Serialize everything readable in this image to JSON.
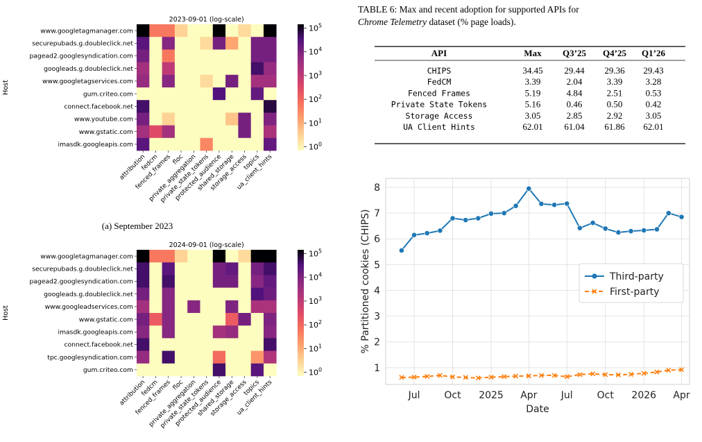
{
  "heatmap_common": {
    "hosts_label": "Host",
    "apis": [
      "attribution",
      "fedcm",
      "fenced_frames",
      "floc",
      "private_aggregation",
      "private_state_tokens",
      "protected_audience",
      "shared_storage",
      "storage_access",
      "topics",
      "ua_client_hints"
    ],
    "colorbar_ticks": [
      {
        "exp": "5"
      },
      {
        "exp": "4"
      },
      {
        "exp": "3"
      },
      {
        "exp": "2"
      },
      {
        "exp": "1"
      },
      {
        "exp": "0"
      }
    ],
    "colorbar_base": "10"
  },
  "chart_data": [
    {
      "type": "heatmap",
      "title": "2023-09-01 (log-scale)",
      "caption": "(a) September 2023",
      "ylabel": "Host",
      "hosts": [
        "www.googletagmanager.com",
        "securepubads.g.doubleclick.net",
        "pagead2.googlesyndication.com",
        "googleads.g.doubleclick.net",
        "www.googletagservices.com",
        "gum.criteo.com",
        "connect.facebook.net",
        "www.youtube.com",
        "www.gstatic.com",
        "imasdk.googleapis.com"
      ],
      "x": [
        "attribution",
        "fedcm",
        "fenced_frames",
        "floc",
        "private_aggregation",
        "private_state_tokens",
        "protected_audience",
        "shared_storage",
        "storage_access",
        "topics",
        "ua_client_hints"
      ],
      "log10_values": [
        [
          5,
          1.8,
          1.8,
          0.6,
          0,
          0,
          5,
          0,
          0.5,
          0,
          5
        ],
        [
          4.3,
          0,
          3.8,
          0,
          0,
          0.5,
          4,
          1.2,
          0,
          4,
          4
        ],
        [
          4,
          0,
          1.8,
          0,
          0,
          0,
          0,
          0,
          0,
          4,
          4
        ],
        [
          3.4,
          0,
          3,
          0,
          0,
          0,
          0,
          0,
          0,
          4.5,
          3.6
        ],
        [
          3.6,
          0,
          3.8,
          0,
          0,
          0.5,
          0,
          4,
          0,
          3.4,
          3.4
        ],
        [
          0,
          0,
          0,
          0,
          0,
          0,
          4.4,
          0,
          0,
          4.2,
          0
        ],
        [
          4.5,
          0,
          0,
          0,
          0,
          0,
          0,
          0,
          0,
          0,
          4.7
        ],
        [
          4,
          0,
          0.6,
          0,
          0,
          0,
          0,
          0.8,
          4,
          0,
          3.9
        ],
        [
          3.4,
          2.5,
          3.4,
          0,
          0,
          0,
          0,
          0,
          4,
          0,
          3.3
        ],
        [
          4.3,
          0,
          0,
          0,
          0,
          1.6,
          0,
          0,
          0,
          0,
          4.2
        ]
      ],
      "colorbar": {
        "scale": "log",
        "range": [
          1,
          100000
        ]
      }
    },
    {
      "type": "heatmap",
      "title": "2024-09-01 (log-scale)",
      "caption": "",
      "ylabel": "Host",
      "hosts": [
        "www.googletagmanager.com",
        "securepubads.g.doubleclick.net",
        "pagead2.googlesyndication.com",
        "googleads.g.doubleclick.net",
        "www.googleadservices.com",
        "www.gstatic.com",
        "imasdk.googleapis.com",
        "connect.facebook.net",
        "tpc.googlesyndication.com",
        "gum.criteo.com"
      ],
      "x": [
        "attribution",
        "fedcm",
        "fenced_frames",
        "floc",
        "private_aggregation",
        "private_state_tokens",
        "protected_audience",
        "shared_storage",
        "storage_access",
        "topics",
        "ua_client_hints"
      ],
      "log10_values": [
        [
          5,
          1.8,
          1.8,
          0.6,
          0,
          0,
          5,
          0,
          0.5,
          5,
          5
        ],
        [
          4.5,
          0,
          4.3,
          0,
          0,
          0,
          4,
          4.2,
          0,
          4,
          4.5
        ],
        [
          4.5,
          0,
          4.5,
          0,
          0,
          0,
          4,
          4,
          0,
          3.8,
          4.2
        ],
        [
          4,
          0,
          3.8,
          0,
          0,
          0,
          0,
          0,
          0,
          4.4,
          4.1
        ],
        [
          3.4,
          0,
          3.8,
          0,
          3.8,
          0,
          0,
          3.9,
          0,
          3.3,
          3.3
        ],
        [
          4,
          2.2,
          3.8,
          0,
          0,
          0,
          0,
          2.2,
          4,
          0,
          3.9
        ],
        [
          3.8,
          0,
          3.8,
          0,
          0,
          0,
          3.4,
          3.6,
          0,
          0,
          3.8
        ],
        [
          4.5,
          0,
          0,
          0,
          0,
          0,
          0,
          0,
          0,
          0,
          4.5
        ],
        [
          3.6,
          0,
          4.5,
          0,
          0,
          0,
          2,
          0,
          0,
          1.4,
          3.2
        ],
        [
          0,
          0,
          0,
          0,
          0,
          0,
          4.5,
          0,
          0,
          4.3,
          0
        ]
      ],
      "colorbar": {
        "scale": "log",
        "range": [
          1,
          100000
        ]
      }
    },
    {
      "type": "table",
      "title_lead": "TABLE 6: Max and recent adoption for supported APIs for",
      "title_em": "Chrome Telemetry",
      "title_tail": "dataset (% page loads).",
      "columns": [
        "API",
        "Max",
        "Q3’25",
        "Q4’25",
        "Q1’26"
      ],
      "rows": [
        [
          "CHIPS",
          "34.45",
          "29.44",
          "29.36",
          "29.43"
        ],
        [
          "FedCM",
          "3.39",
          "2.04",
          "3.39",
          "3.28"
        ],
        [
          "Fenced Frames",
          "5.19",
          "4.84",
          "2.51",
          "0.53"
        ],
        [
          "Private State Tokens",
          "5.16",
          "0.46",
          "0.50",
          "0.42"
        ],
        [
          "Storage Access",
          "3.05",
          "2.85",
          "2.92",
          "3.05"
        ],
        [
          "UA Client Hints",
          "62.01",
          "61.04",
          "61.86",
          "62.01"
        ]
      ]
    },
    {
      "type": "line",
      "xlabel": "Date",
      "ylabel": "% Partitioned cookies (CHIPS)",
      "ylim": [
        0.35,
        8.35
      ],
      "yticks": [
        "1",
        "2",
        "3",
        "4",
        "5",
        "6",
        "7",
        "8"
      ],
      "xlim": [
        "2024-04-24",
        "2026-04-20"
      ],
      "xticks": [
        {
          "date": "2024-07-01",
          "label": "Jul"
        },
        {
          "date": "2024-10-01",
          "label": "Oct"
        },
        {
          "date": "2025-01-01",
          "label": "2025"
        },
        {
          "date": "2025-04-01",
          "label": "Apr"
        },
        {
          "date": "2025-07-01",
          "label": "Jul"
        },
        {
          "date": "2025-10-01",
          "label": "Oct"
        },
        {
          "date": "2026-01-01",
          "label": "2026"
        },
        {
          "date": "2026-04-01",
          "label": "Apr"
        }
      ],
      "grid": true,
      "legend_position": "center-right",
      "x": [
        "2024-06-01",
        "2024-07-01",
        "2024-08-01",
        "2024-09-01",
        "2024-10-01",
        "2024-11-01",
        "2024-12-01",
        "2025-01-01",
        "2025-02-01",
        "2025-03-01",
        "2025-04-01",
        "2025-05-01",
        "2025-06-01",
        "2025-07-01",
        "2025-08-01",
        "2025-09-01",
        "2025-10-01",
        "2025-11-01",
        "2025-12-01",
        "2026-01-01",
        "2026-02-01",
        "2026-03-01",
        "2026-04-01"
      ],
      "series": [
        {
          "name": "Third-party",
          "color": "#1f77b4",
          "marker": "circle",
          "values": [
            5.55,
            6.15,
            6.22,
            6.32,
            6.8,
            6.73,
            6.8,
            6.98,
            7.0,
            7.28,
            7.95,
            7.36,
            7.32,
            7.37,
            6.42,
            6.62,
            6.4,
            6.25,
            6.3,
            6.33,
            6.37,
            7.0,
            6.85
          ]
        },
        {
          "name": "First-party",
          "color": "#ff7f0e",
          "marker": "x",
          "values": [
            0.62,
            0.63,
            0.66,
            0.7,
            0.64,
            0.62,
            0.6,
            0.63,
            0.65,
            0.67,
            0.68,
            0.7,
            0.7,
            0.65,
            0.73,
            0.76,
            0.73,
            0.72,
            0.74,
            0.78,
            0.83,
            0.9,
            0.92
          ]
        }
      ]
    }
  ]
}
